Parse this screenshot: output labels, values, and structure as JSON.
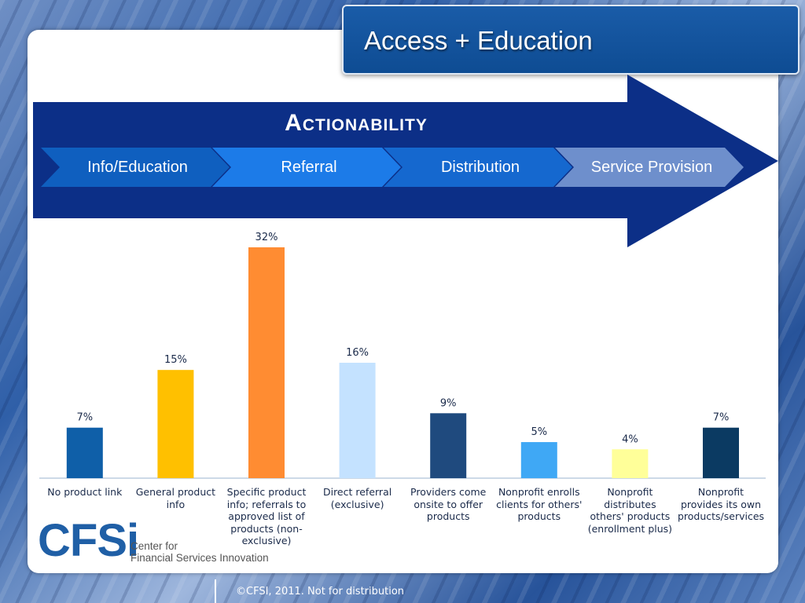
{
  "slide": {
    "title": "Access + Education",
    "footer": "©CFSI, 2011. Not for distribution"
  },
  "banner": {
    "heading": "Actionability",
    "stages": [
      "Info/Education",
      "Referral",
      "Distribution",
      "Service Provision"
    ],
    "colors": {
      "arrow": "#0c2f87",
      "stage_1": "#0f5fbf",
      "stage_2": "#1c7be8",
      "stage_3": "#1568cf",
      "stage_4": "#6e8fcc"
    }
  },
  "logo": {
    "mark": "CFSi",
    "line1": "Center for",
    "line2": "Financial Services Innovation"
  },
  "chart_data": {
    "type": "bar",
    "categories": [
      "No product link",
      "General product info",
      "Specific product info; referrals to approved list of products (non-exclusive)",
      "Direct referral (exclusive)",
      "Providers come onsite to offer products",
      "Nonprofit enrolls clients for others' products",
      "Nonprofit distributes others' products (enrollment plus)",
      "Nonprofit provides its own products/services"
    ],
    "values": [
      7,
      15,
      32,
      16,
      9,
      5,
      4,
      7
    ],
    "data_labels": [
      "7%",
      "15%",
      "32%",
      "16%",
      "9%",
      "5%",
      "4%",
      "7%"
    ],
    "colors": [
      "#0f5fa8",
      "#ffc000",
      "#ff8c32",
      "#c4e2ff",
      "#1f4a7e",
      "#3fa8f5",
      "#ffff99",
      "#0b3a62"
    ],
    "ylim": [
      0,
      32
    ],
    "grid": false,
    "legend": "none"
  }
}
